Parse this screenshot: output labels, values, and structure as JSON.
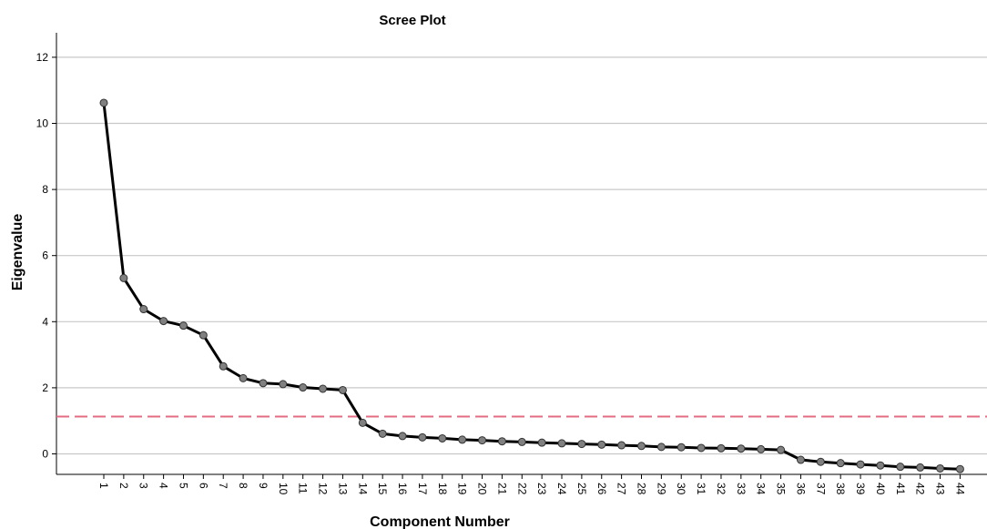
{
  "chart_data": {
    "type": "line",
    "title": "Scree Plot",
    "xlabel": "Component Number",
    "ylabel": "Eigenvalue",
    "ylim": [
      -0.6,
      12.6
    ],
    "yticks": [
      "0",
      "2",
      "4",
      "6",
      "8",
      "10",
      "12"
    ],
    "x": [
      "1",
      "2",
      "3",
      "4",
      "5",
      "6",
      "7",
      "8",
      "9",
      "10",
      "11",
      "12",
      "13",
      "14",
      "15",
      "16",
      "17",
      "18",
      "19",
      "20",
      "21",
      "22",
      "23",
      "24",
      "25",
      "26",
      "27",
      "28",
      "29",
      "30",
      "31",
      "32",
      "33",
      "34",
      "35",
      "36",
      "37",
      "38",
      "39",
      "40",
      "41",
      "42",
      "43",
      "44"
    ],
    "values": [
      10.62,
      5.32,
      4.38,
      4.02,
      3.88,
      3.59,
      2.65,
      2.29,
      2.14,
      2.11,
      2.01,
      1.97,
      1.93,
      0.94,
      0.61,
      0.54,
      0.5,
      0.47,
      0.43,
      0.41,
      0.38,
      0.36,
      0.34,
      0.32,
      0.3,
      0.28,
      0.26,
      0.24,
      0.21,
      0.2,
      0.18,
      0.17,
      0.16,
      0.14,
      0.12,
      -0.18,
      -0.24,
      -0.28,
      -0.32,
      -0.35,
      -0.39,
      -0.41,
      -0.44,
      -0.46
    ],
    "reference_line": {
      "value": 1.13,
      "style": "dashed"
    },
    "grid": true,
    "colors": {
      "line": "#000000",
      "marker": "#808080",
      "reference": "#e36c82",
      "grid": "#c8c8c8"
    }
  }
}
